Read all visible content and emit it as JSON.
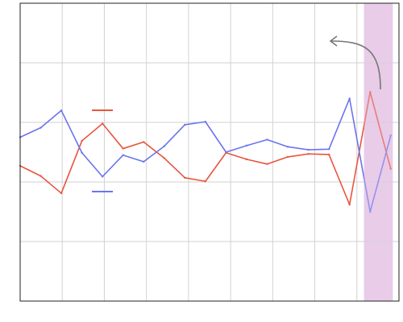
{
  "chart_data": {
    "type": "line",
    "title": "",
    "xlabel": "",
    "ylabel": "",
    "x": [
      0,
      1,
      2,
      3,
      4,
      5,
      6,
      7,
      8,
      9,
      10,
      11,
      12,
      13,
      14,
      15,
      16,
      17,
      18
    ],
    "xlim": [
      0,
      18.4
    ],
    "ylim": [
      0,
      5
    ],
    "grid": true,
    "legend": "left-middle",
    "highlight_range": [
      16.7,
      18.1
    ],
    "series": [
      {
        "name": "",
        "color": "#e8553e",
        "values": [
          2.27,
          2.1,
          1.81,
          2.69,
          2.98,
          2.56,
          2.67,
          2.4,
          2.07,
          2.01,
          2.49,
          2.38,
          2.3,
          2.42,
          2.47,
          2.46,
          1.62,
          3.51,
          2.22
        ]
      },
      {
        "name": "",
        "color": "#6b74ee",
        "values": [
          2.75,
          2.91,
          3.2,
          2.49,
          2.09,
          2.45,
          2.34,
          2.6,
          2.96,
          3.01,
          2.5,
          2.61,
          2.71,
          2.59,
          2.54,
          2.55,
          3.4,
          1.5,
          2.78
        ]
      }
    ],
    "annotation": {
      "type": "curved-arrow",
      "x": 17.5,
      "y": 3.5,
      "color": "#777777"
    }
  }
}
